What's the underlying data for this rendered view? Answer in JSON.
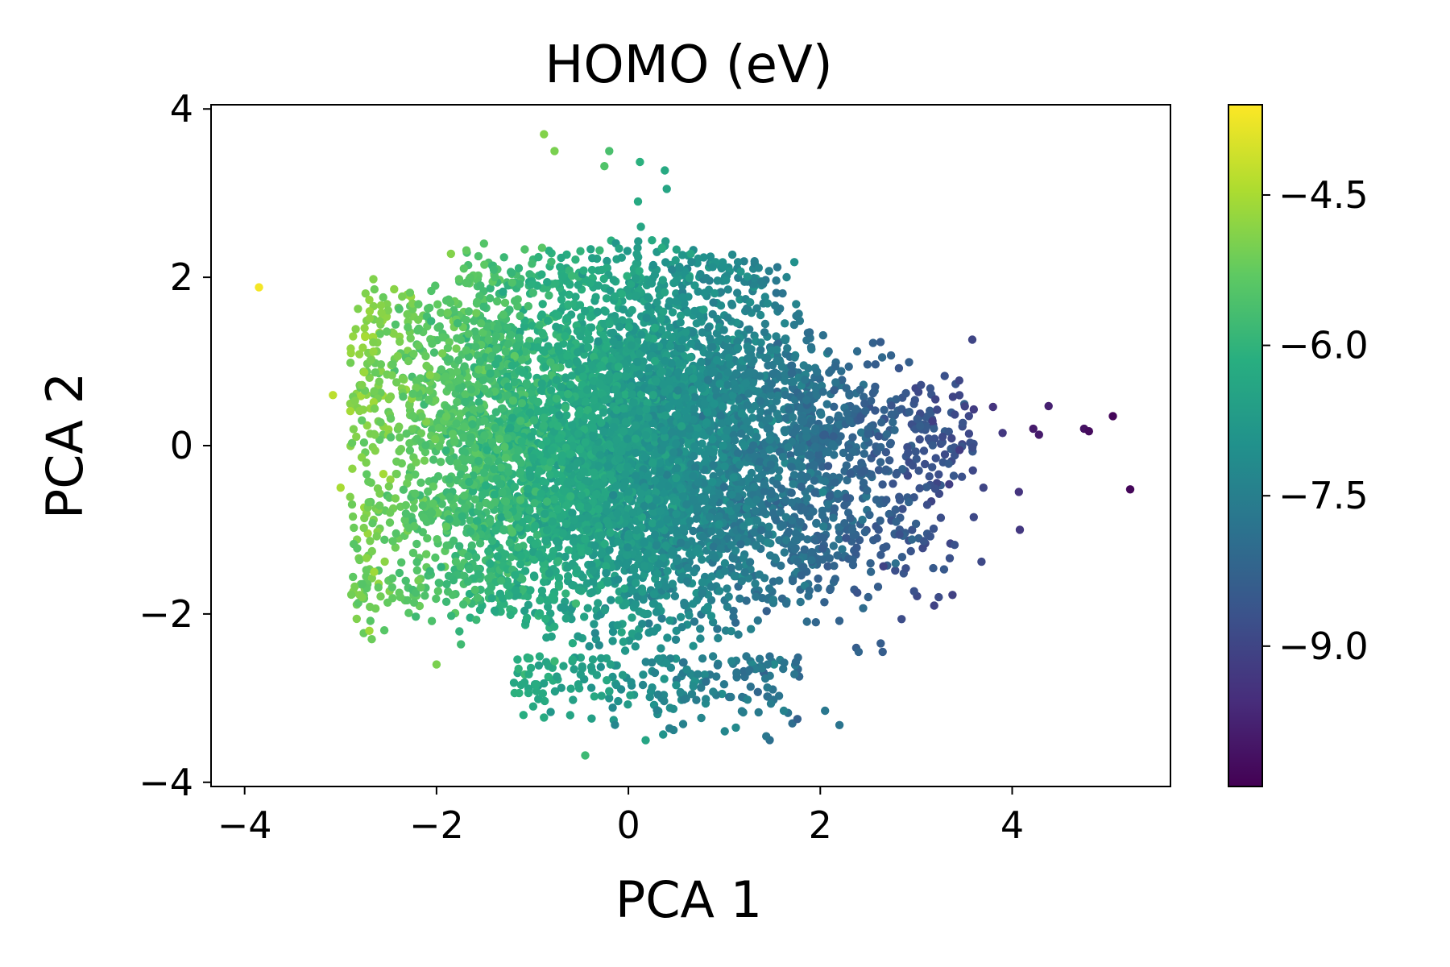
{
  "chart_data": {
    "type": "scatter",
    "title": "HOMO (eV)",
    "xlabel": "PCA 1",
    "ylabel": "PCA 2",
    "xlim": [
      -4.35,
      5.65
    ],
    "ylim": [
      -4.05,
      4.05
    ],
    "x_ticks": [
      -4,
      -2,
      0,
      2,
      4
    ],
    "x_tick_labels": [
      "−4",
      "−2",
      "0",
      "2",
      "4"
    ],
    "y_ticks": [
      -4,
      -2,
      0,
      2,
      4
    ],
    "y_tick_labels": [
      "−4",
      "−2",
      "0",
      "2",
      "4"
    ],
    "colormap": "viridis",
    "colorbar": {
      "range": [
        -10.4,
        -3.6
      ],
      "ticks": [
        -4.5,
        -6.0,
        -7.5,
        -9.0
      ],
      "tick_labels": [
        "−4.5",
        "−6.0",
        "−7.5",
        "−9.0"
      ]
    },
    "grid": false,
    "legend": "none",
    "outlier_points": [
      {
        "x": -3.85,
        "y": 1.88,
        "v": -3.7
      },
      {
        "x": -0.88,
        "y": 3.7,
        "v": -4.9
      },
      {
        "x": -0.77,
        "y": 3.5,
        "v": -5.0
      },
      {
        "x": -0.2,
        "y": 3.5,
        "v": -5.6
      },
      {
        "x": -0.25,
        "y": 3.32,
        "v": -5.5
      },
      {
        "x": 0.12,
        "y": 3.37,
        "v": -6.1
      },
      {
        "x": 0.38,
        "y": 3.27,
        "v": -6.3
      },
      {
        "x": 0.4,
        "y": 3.05,
        "v": -6.4
      },
      {
        "x": 0.1,
        "y": 2.9,
        "v": -6.3
      },
      {
        "x": 0.13,
        "y": 2.6,
        "v": -6.4
      },
      {
        "x": -2.7,
        "y": -2.2,
        "v": -4.6
      },
      {
        "x": -2.0,
        "y": -2.6,
        "v": -5.0
      },
      {
        "x": -0.45,
        "y": -3.68,
        "v": -5.8
      },
      {
        "x": 0.18,
        "y": -3.5,
        "v": -6.4
      },
      {
        "x": 1.12,
        "y": -3.35,
        "v": -7.2
      },
      {
        "x": 2.05,
        "y": -3.15,
        "v": -7.7
      },
      {
        "x": 2.2,
        "y": -3.32,
        "v": -7.8
      },
      {
        "x": 1.62,
        "y": -3.15,
        "v": -7.4
      },
      {
        "x": 1.73,
        "y": 2.18,
        "v": -7.0
      },
      {
        "x": 2.55,
        "y": 1.22,
        "v": -8.3
      },
      {
        "x": 2.82,
        "y": 0.92,
        "v": -8.6
      },
      {
        "x": 3.05,
        "y": 0.72,
        "v": -8.8
      },
      {
        "x": 3.2,
        "y": 0.55,
        "v": -9.0
      },
      {
        "x": 3.6,
        "y": 0.43,
        "v": -9.2
      },
      {
        "x": 3.8,
        "y": 0.46,
        "v": -9.4
      },
      {
        "x": 3.9,
        "y": 0.15,
        "v": -9.3
      },
      {
        "x": 4.38,
        "y": 0.47,
        "v": -9.8
      },
      {
        "x": 4.22,
        "y": 0.2,
        "v": -9.9
      },
      {
        "x": 4.28,
        "y": 0.13,
        "v": -9.9
      },
      {
        "x": 4.75,
        "y": 0.2,
        "v": -10.1
      },
      {
        "x": 4.8,
        "y": 0.17,
        "v": -10.2
      },
      {
        "x": 5.05,
        "y": 0.35,
        "v": -10.3
      },
      {
        "x": 5.23,
        "y": -0.52,
        "v": -10.3
      },
      {
        "x": 4.07,
        "y": -0.55,
        "v": -9.4
      },
      {
        "x": 4.08,
        "y": -1.0,
        "v": -9.3
      },
      {
        "x": 3.7,
        "y": -0.5,
        "v": -9.0
      },
      {
        "x": 3.6,
        "y": -0.85,
        "v": -8.9
      },
      {
        "x": 3.68,
        "y": -1.38,
        "v": -8.9
      },
      {
        "x": 3.4,
        "y": -1.18,
        "v": -8.7
      },
      {
        "x": 2.65,
        "y": -2.45,
        "v": -8.4
      },
      {
        "x": 2.63,
        "y": -2.35,
        "v": -8.4
      },
      {
        "x": 2.4,
        "y": -2.45,
        "v": -8.2
      },
      {
        "x": 2.5,
        "y": -1.8,
        "v": -8.3
      },
      {
        "x": -3.08,
        "y": 0.6,
        "v": -4.3
      },
      {
        "x": -3.0,
        "y": -0.5,
        "v": -4.5
      },
      {
        "x": -2.65,
        "y": -1.5,
        "v": -4.6
      },
      {
        "x": -1.85,
        "y": 2.28,
        "v": -4.9
      },
      {
        "x": -0.9,
        "y": 2.35,
        "v": -5.4
      },
      {
        "x": -0.3,
        "y": 2.32,
        "v": -5.9
      },
      {
        "x": 0.35,
        "y": 2.35,
        "v": -6.2
      },
      {
        "x": 0.65,
        "y": 2.28,
        "v": -6.4
      }
    ]
  }
}
